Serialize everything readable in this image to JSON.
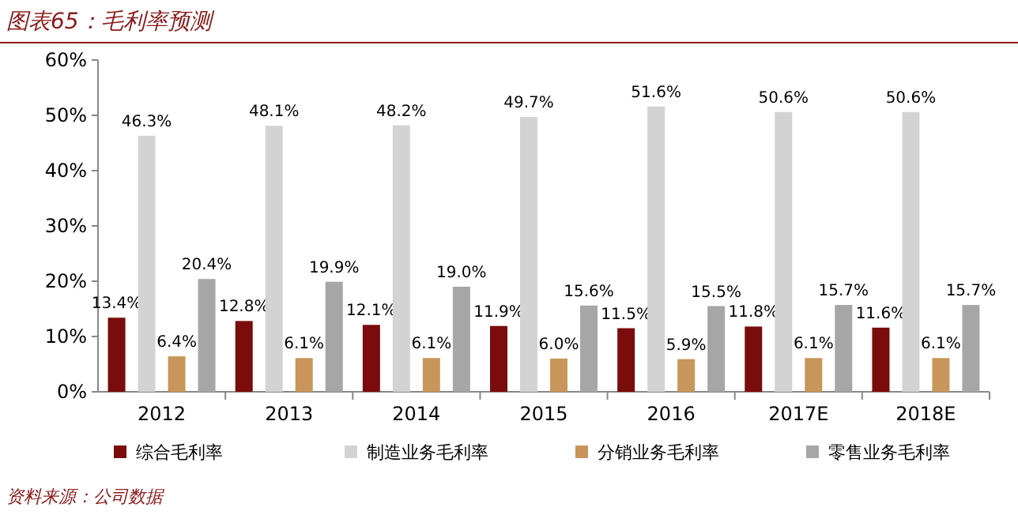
{
  "chart_data": {
    "type": "bar",
    "title": "图表65：毛利率预测",
    "categories": [
      "2012",
      "2013",
      "2014",
      "2015",
      "2016",
      "2017E",
      "2018E"
    ],
    "series": [
      {
        "name": "综合毛利率",
        "color": "#7b0c0c",
        "values": [
          13.4,
          12.8,
          12.1,
          11.9,
          11.5,
          11.8,
          11.6
        ],
        "value_labels": [
          "13.4%",
          "12.8%",
          "12.1%",
          "11.9%",
          "11.5%",
          "11.8%",
          "11.6%"
        ]
      },
      {
        "name": "制造业务毛利率",
        "color": "#d3d3d3",
        "values": [
          46.3,
          48.1,
          48.2,
          49.7,
          51.6,
          50.6,
          50.6
        ],
        "value_labels": [
          "46.3%",
          "48.1%",
          "48.2%",
          "49.7%",
          "51.6%",
          "50.6%",
          "50.6%"
        ]
      },
      {
        "name": "分销业务毛利率",
        "color": "#c8965a",
        "values": [
          6.4,
          6.1,
          6.1,
          6.0,
          5.9,
          6.1,
          6.1
        ],
        "value_labels": [
          "6.4%",
          "6.1%",
          "6.1%",
          "6.0%",
          "5.9%",
          "6.1%",
          "6.1%"
        ]
      },
      {
        "name": "零售业务毛利率",
        "color": "#a6a6a6",
        "values": [
          20.4,
          19.9,
          19.0,
          15.6,
          15.5,
          15.7,
          15.7
        ],
        "value_labels": [
          "20.4%",
          "19.9%",
          "19.0%",
          "15.6%",
          "15.5%",
          "15.7%",
          "15.7%"
        ]
      }
    ],
    "ylim": [
      0,
      60
    ],
    "yticks": [
      {
        "value": 0,
        "label": "0%"
      },
      {
        "value": 10,
        "label": "10%"
      },
      {
        "value": 20,
        "label": "20%"
      },
      {
        "value": 30,
        "label": "30%"
      },
      {
        "value": 40,
        "label": "40%"
      },
      {
        "value": 50,
        "label": "50%"
      },
      {
        "value": 60,
        "label": "60%"
      }
    ],
    "legend": "bottom",
    "grid": false,
    "annotations": [
      "资料来源：公司数据"
    ]
  }
}
